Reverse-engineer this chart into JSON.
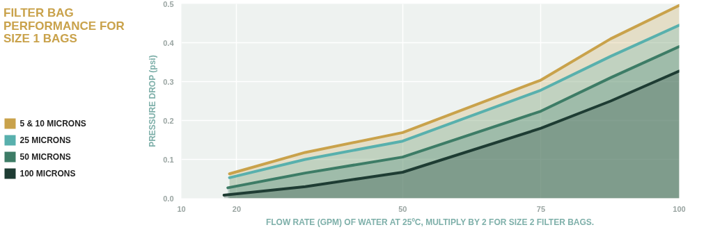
{
  "chart_data": {
    "type": "area",
    "title": "FILTER BAG PERFORMANCE FOR SIZE 1 BAGS",
    "xlabel": "FLOW RATE (GPM) OF WATER AT 25ºC, MULTIPLY BY 2 FOR SIZE 2 FILTER BAGS.",
    "ylabel": "PRESSURE DROP (psi)",
    "xlim": [
      10,
      100
    ],
    "xticks": [
      10,
      20,
      50,
      75,
      100
    ],
    "ylim": [
      0,
      0.5
    ],
    "yticks": [
      {
        "value": 0,
        "label": "0.0"
      },
      0.1,
      0.2,
      0.3,
      0.4,
      0.5
    ],
    "grid": true,
    "legend": "left",
    "series": [
      {
        "name": "5 & 10 MICRONS",
        "color": "#c9a24b",
        "x": [
          18.7,
          32.4,
          50,
          75,
          87.6,
          100
        ],
        "values": [
          0.063,
          0.118,
          0.169,
          0.304,
          0.41,
          0.496
        ]
      },
      {
        "name": "25 MICRONS",
        "color": "#58b0ad",
        "x": [
          18.7,
          32.4,
          50,
          75,
          87.6,
          100
        ],
        "values": [
          0.053,
          0.1,
          0.147,
          0.278,
          0.365,
          0.445
        ]
      },
      {
        "name": "50 MICRONS",
        "color": "#3d7c66",
        "x": [
          18.4,
          32.4,
          50,
          75,
          87.6,
          100
        ],
        "values": [
          0.027,
          0.065,
          0.106,
          0.224,
          0.31,
          0.39
        ]
      },
      {
        "name": "100 MICRONS",
        "color": "#1e3c33",
        "x": [
          17.7,
          32.4,
          50,
          75,
          87.6,
          100
        ],
        "values": [
          0.008,
          0.03,
          0.067,
          0.18,
          0.25,
          0.327
        ]
      }
    ]
  }
}
